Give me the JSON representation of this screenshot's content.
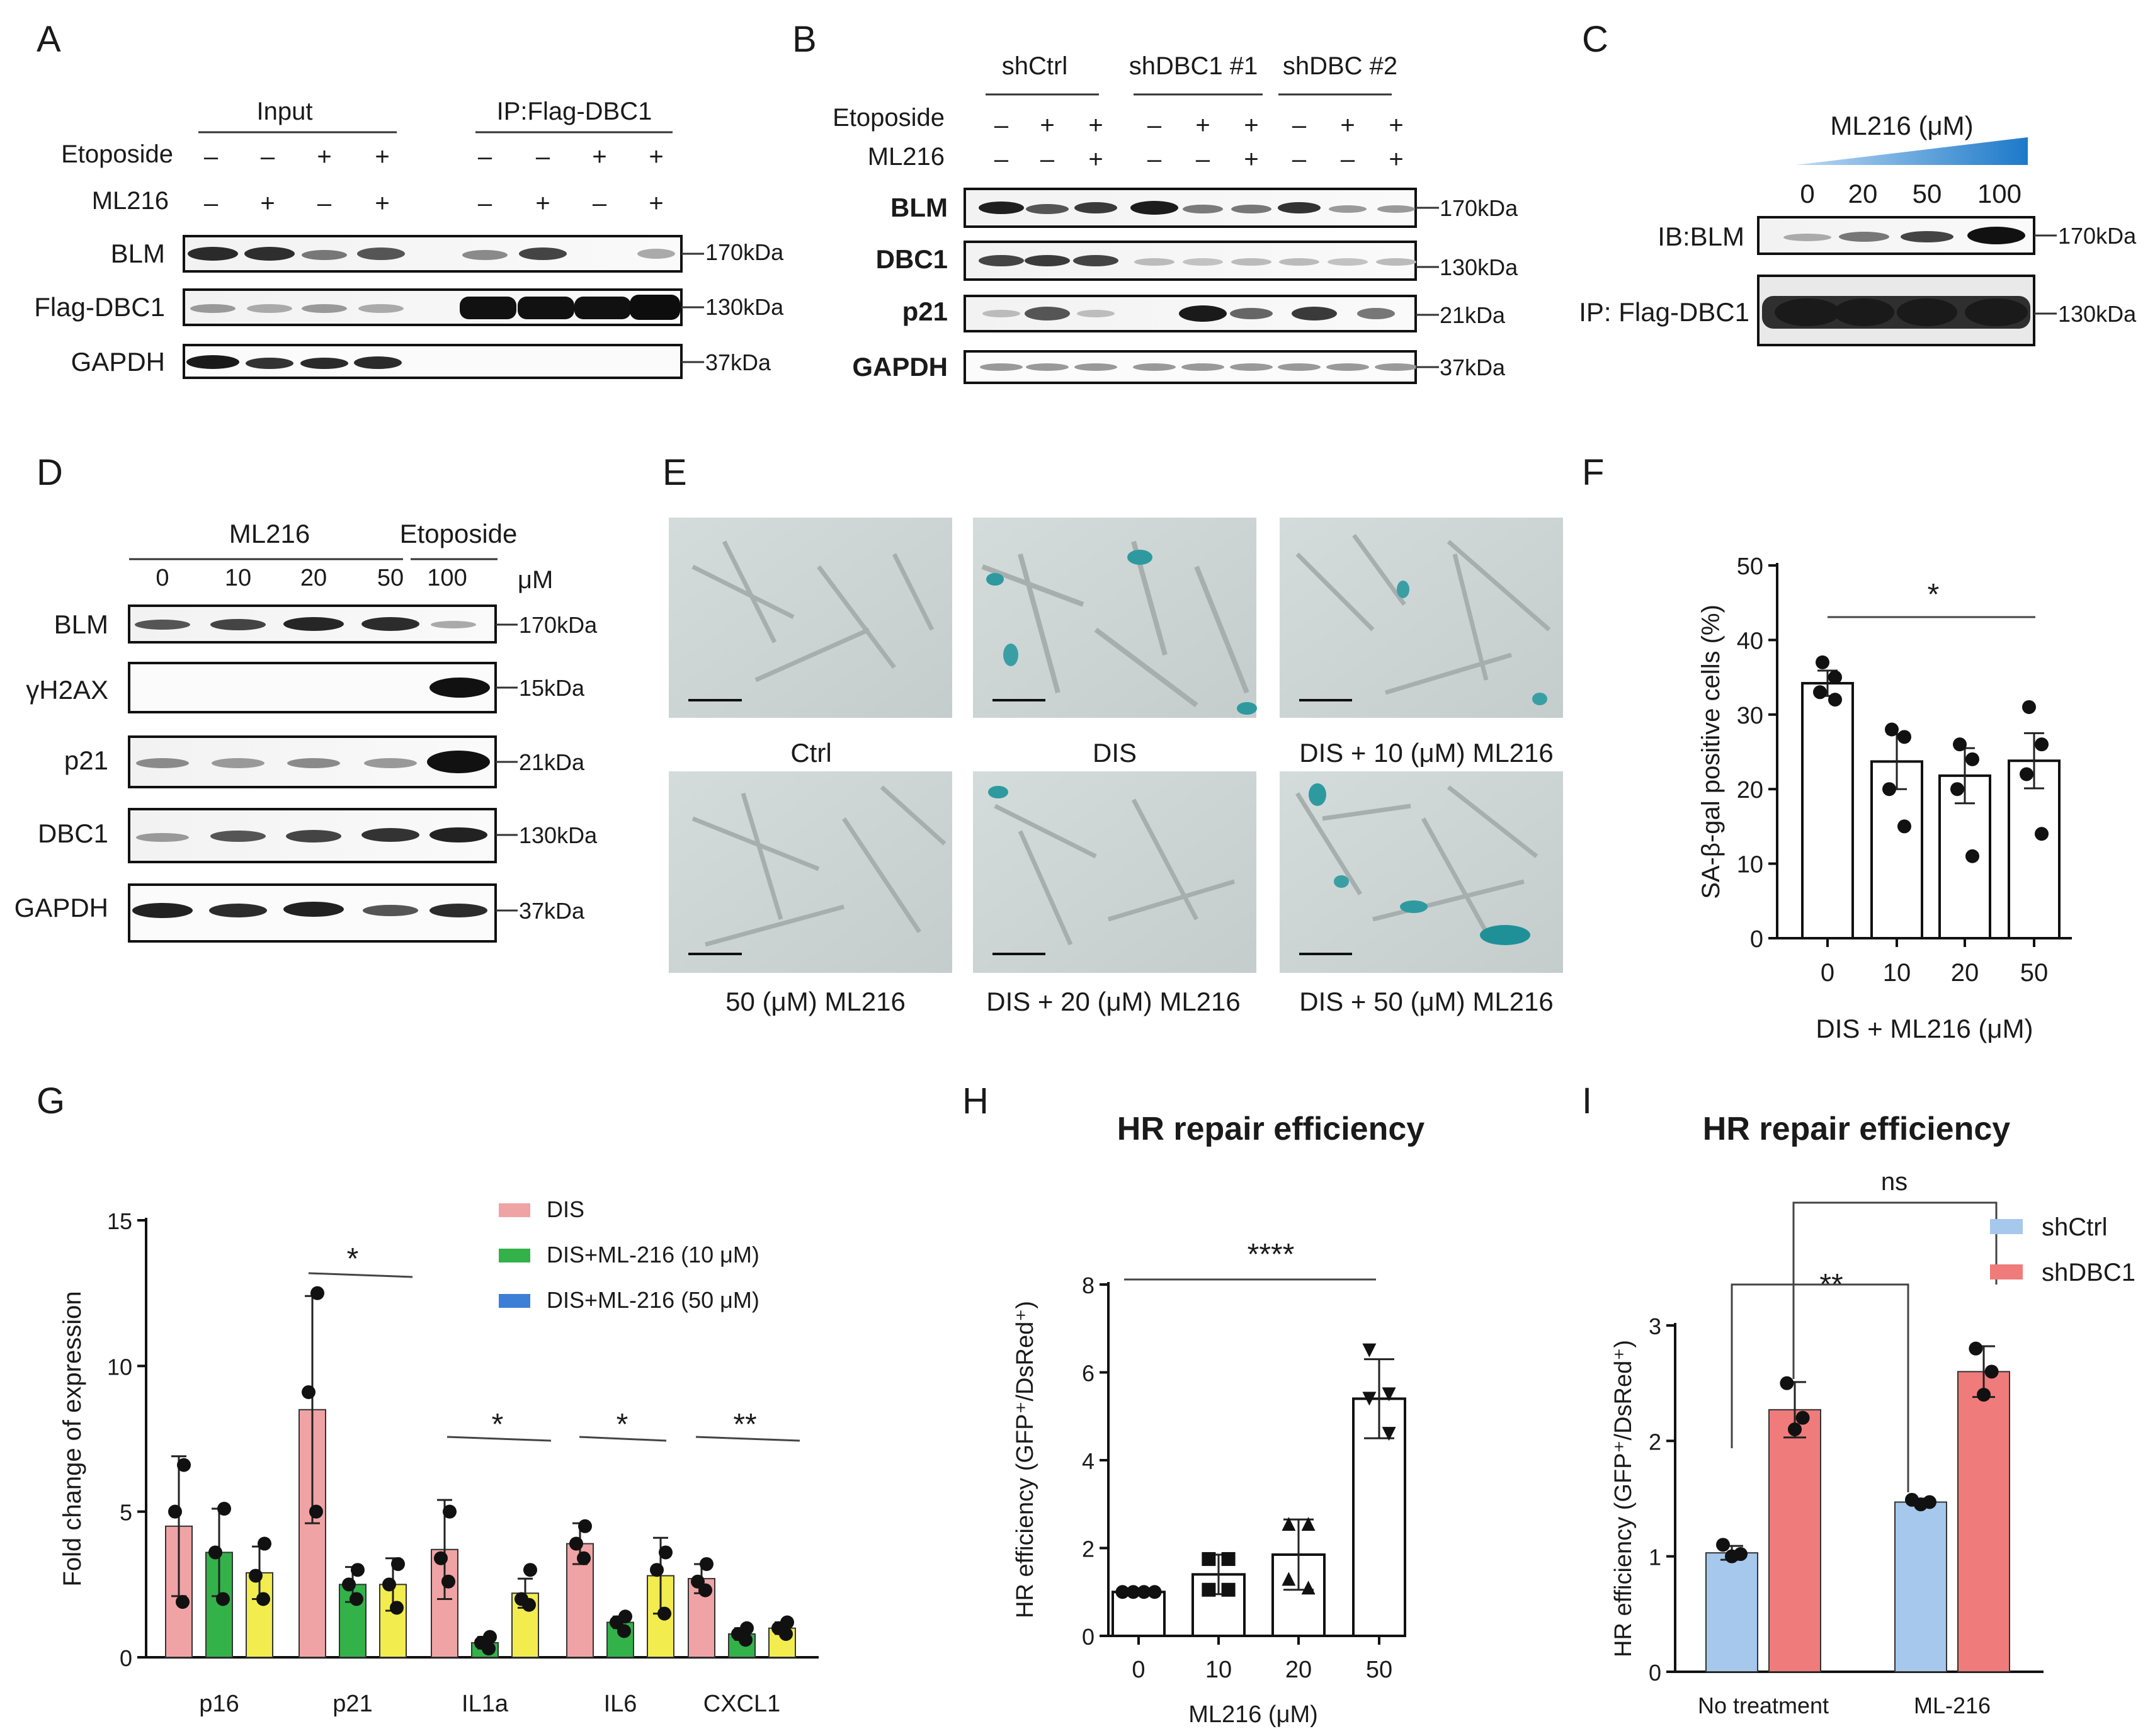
{
  "figure": {
    "panels": {
      "A": {
        "letter": "A",
        "headers": [
          "Input",
          "IP:Flag-DBC1"
        ],
        "conditions": [
          {
            "label": "Etoposide",
            "signs": [
              "–",
              "–",
              "+",
              "+",
              "–",
              "–",
              "+",
              "+"
            ]
          },
          {
            "label": "ML216",
            "signs": [
              "–",
              "+",
              "–",
              "+",
              "–",
              "+",
              "–",
              "+"
            ]
          }
        ],
        "blots": [
          {
            "label": "BLM",
            "size": "170kDa"
          },
          {
            "label": "Flag-DBC1",
            "size": "130kDa"
          },
          {
            "label": "GAPDH",
            "size": "37kDa"
          }
        ]
      },
      "B": {
        "letter": "B",
        "groups": [
          "shCtrl",
          "shDBC1 #1",
          "shDBC #2"
        ],
        "conditions": [
          {
            "label": "Etoposide",
            "signs": [
              "–",
              "+",
              "+",
              "–",
              "+",
              "+",
              "–",
              "+",
              "+"
            ]
          },
          {
            "label": "ML216",
            "signs": [
              "–",
              "–",
              "+",
              "–",
              "–",
              "+",
              "–",
              "–",
              "+"
            ]
          }
        ],
        "blots": [
          {
            "label": "BLM",
            "size": "170kDa"
          },
          {
            "label": "DBC1",
            "size": "130kDa"
          },
          {
            "label": "p21",
            "size": "21kDa"
          },
          {
            "label": "GAPDH",
            "size": "37kDa"
          }
        ]
      },
      "C": {
        "letter": "C",
        "title": "ML216 (μM)",
        "doses": [
          "0",
          "20",
          "50",
          "100"
        ],
        "blots": [
          {
            "label": "IB:BLM",
            "size": "170kDa"
          },
          {
            "label": "IP: Flag-DBC1",
            "size": "130kDa"
          }
        ]
      },
      "D": {
        "letter": "D",
        "groups": [
          "ML216",
          "Etoposide"
        ],
        "doses": [
          "0",
          "10",
          "20",
          "50",
          "100"
        ],
        "unit": "μM",
        "blots": [
          {
            "label": "BLM",
            "size": "170kDa"
          },
          {
            "label": "γH2AX",
            "size": "15kDa"
          },
          {
            "label": "p21",
            "size": "21kDa"
          },
          {
            "label": "DBC1",
            "size": "130kDa"
          },
          {
            "label": "GAPDH",
            "size": "37kDa"
          }
        ]
      },
      "E": {
        "letter": "E",
        "images": [
          {
            "label": "Ctrl"
          },
          {
            "label": "DIS"
          },
          {
            "label": "DIS + 10 (μM) ML216"
          },
          {
            "label": "50 (μM) ML216"
          },
          {
            "label": "DIS + 20 (μM) ML216"
          },
          {
            "label": "DIS + 50 (μM) ML216"
          }
        ]
      },
      "F": {
        "letter": "F",
        "significance": "*"
      },
      "G": {
        "letter": "G",
        "significance": [
          "*",
          "*",
          "*",
          "**"
        ]
      },
      "H": {
        "letter": "H",
        "significance": "****"
      },
      "I": {
        "letter": "I",
        "significance": [
          "**",
          "ns"
        ]
      }
    }
  },
  "chart_data": [
    {
      "id": "F",
      "type": "bar",
      "title": "",
      "xlabel": "DIS + ML216 (μM)",
      "ylabel": "SA-β-gal positive cells (%)",
      "categories": [
        "0",
        "10",
        "20",
        "50"
      ],
      "values": [
        34.2,
        23.7,
        21.8,
        23.8
      ],
      "errors": [
        1.7,
        3.7,
        3.7,
        3.7
      ],
      "points": [
        [
          37,
          35,
          33,
          32
        ],
        [
          28,
          27,
          20,
          15
        ],
        [
          26,
          24,
          20,
          11
        ],
        [
          31,
          26,
          22,
          14
        ]
      ],
      "ylim": [
        0,
        50
      ],
      "yticks": [
        0,
        10,
        20,
        30,
        40,
        50
      ]
    },
    {
      "id": "G",
      "type": "bar",
      "title": "",
      "xlabel": "",
      "ylabel": "Fold change of expression",
      "categories": [
        "p16",
        "p21",
        "IL1a",
        "IL6",
        "CXCL1"
      ],
      "series": [
        {
          "name": "DIS",
          "color": "#f0a3a5",
          "values": [
            4.5,
            8.5,
            3.7,
            3.9,
            2.7
          ],
          "errors": [
            2.4,
            3.9,
            1.7,
            0.7,
            0.5
          ],
          "points": [
            [
              6.6,
              5.0,
              1.9
            ],
            [
              12.5,
              9.1,
              5.0
            ],
            [
              5.0,
              3.4,
              2.6
            ],
            [
              4.5,
              3.9,
              3.4
            ],
            [
              3.2,
              2.6,
              2.3
            ]
          ]
        },
        {
          "name": "DIS+ML-216 (10 μM)",
          "color": "#33b24a",
          "values": [
            3.6,
            2.5,
            0.5,
            1.2,
            0.8
          ],
          "errors": [
            1.5,
            0.6,
            0.2,
            0.2,
            0.2
          ],
          "points": [
            [
              5.1,
              3.6,
              2.0
            ],
            [
              3.0,
              2.5,
              2.0
            ],
            [
              0.7,
              0.5,
              0.3
            ],
            [
              1.4,
              1.2,
              0.9
            ],
            [
              1.0,
              0.8,
              0.6
            ]
          ]
        },
        {
          "name": "DIS+ML-216 (50 μM)",
          "color": "#f2ec4f",
          "values": [
            2.9,
            2.5,
            2.2,
            2.8,
            1.0
          ],
          "errors": [
            0.9,
            0.9,
            0.5,
            1.3,
            0.2
          ],
          "points": [
            [
              3.9,
              2.8,
              2.0
            ],
            [
              3.2,
              2.5,
              1.7
            ],
            [
              3.0,
              2.0,
              1.8
            ],
            [
              3.6,
              3.0,
              1.5
            ],
            [
              1.2,
              1.0,
              0.8
            ]
          ]
        }
      ],
      "legend_swatch_colors": [
        "#f0a3a5",
        "#33b24a",
        "#3d7fd6"
      ],
      "ylim": [
        0,
        15
      ],
      "yticks": [
        0,
        5,
        10,
        15
      ]
    },
    {
      "id": "H",
      "type": "bar",
      "title": "HR repair efficiency",
      "xlabel": "ML216 (μM)",
      "ylabel": "HR efficiency (GFP⁺/DsRed⁺)",
      "categories": [
        "0",
        "10",
        "20",
        "50"
      ],
      "values": [
        1.0,
        1.4,
        1.85,
        5.4
      ],
      "errors": [
        0.05,
        0.45,
        0.8,
        0.9
      ],
      "point_shapes": [
        "circle",
        "square",
        "triangle-up",
        "triangle-down"
      ],
      "points": [
        [
          1.0,
          1.0,
          1.0,
          1.0
        ],
        [
          1.75,
          1.75,
          1.05,
          1.05
        ],
        [
          2.55,
          2.55,
          1.3,
          1.1
        ],
        [
          6.5,
          5.5,
          5.4,
          4.6
        ]
      ],
      "ylim": [
        0,
        8
      ],
      "yticks": [
        0,
        2,
        4,
        6,
        8
      ]
    },
    {
      "id": "I",
      "type": "bar",
      "title": "HR repair efficiency",
      "xlabel": "",
      "ylabel": "HR efficiency (GFP⁺/DsRed⁺)",
      "categories": [
        "No treatment",
        "ML-216"
      ],
      "series": [
        {
          "name": "shCtrl",
          "color": "#a6c8ec",
          "values": [
            1.03,
            1.47
          ],
          "errors": [
            0.06,
            0.03
          ],
          "points": [
            [
              1.1,
              1.02,
              1.0
            ],
            [
              1.49,
              1.47,
              1.45
            ]
          ]
        },
        {
          "name": "shDBC1",
          "color": "#f07b7b",
          "values": [
            2.27,
            2.6
          ],
          "errors": [
            0.24,
            0.22
          ],
          "points": [
            [
              2.5,
              2.2,
              2.1
            ],
            [
              2.8,
              2.6,
              2.4
            ]
          ]
        }
      ],
      "ylim": [
        0,
        3
      ],
      "yticks": [
        0,
        1,
        2,
        3
      ]
    }
  ]
}
